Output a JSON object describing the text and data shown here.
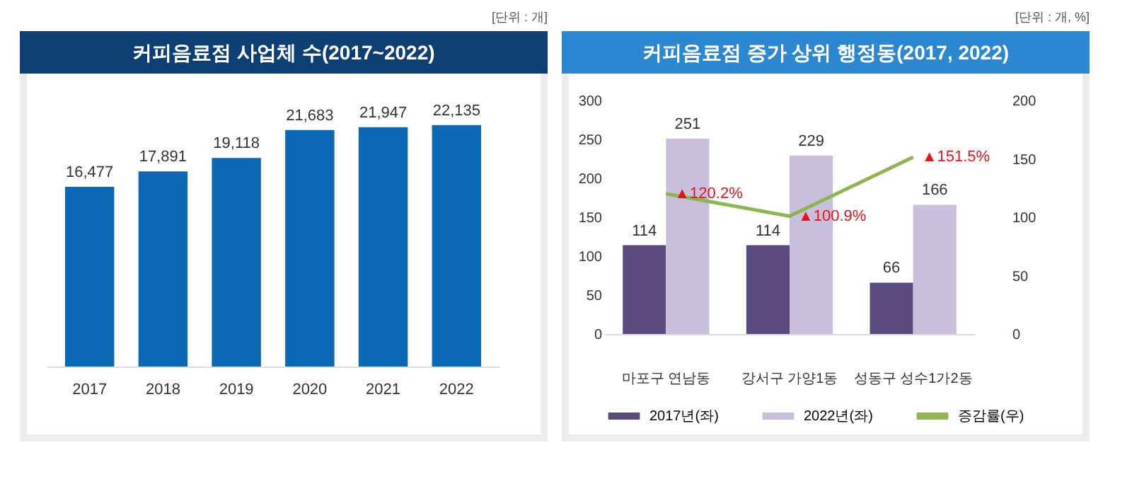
{
  "chart_data": [
    {
      "type": "bar",
      "title": "커피음료점 사업체 수(2017~2022)",
      "annotations": [
        "[단위 : 개]"
      ],
      "categories": [
        "2017",
        "2018",
        "2019",
        "2020",
        "2021",
        "2022"
      ],
      "values": [
        16477,
        17891,
        19118,
        21683,
        21947,
        22135
      ],
      "color": "#0a68b4",
      "value_labels": [
        "16,477",
        "17,891",
        "19,118",
        "21,683",
        "21,947",
        "22,135"
      ]
    },
    {
      "type": "bar",
      "title": "커피음료점 증가 상위 행정동(2017, 2022)",
      "annotations": [
        "[단위 : 개, %]"
      ],
      "categories": [
        "마포구 연남동",
        "강서구 가양1동",
        "성동구 성수1가2동"
      ],
      "series": [
        {
          "name": "2017년(좌)",
          "color": "#5b4a7e",
          "values": [
            114,
            114,
            66
          ]
        },
        {
          "name": "2022년(좌)",
          "color": "#c9bedc",
          "values": [
            251,
            229,
            166
          ]
        },
        {
          "name": "증감률(우)",
          "type": "line",
          "axis": "y2",
          "color": "#8db651",
          "values": [
            120.2,
            100.9,
            151.5
          ],
          "value_labels": [
            "▲120.2%",
            "▲100.9%",
            "▲151.5%"
          ]
        }
      ],
      "ylim": [
        0,
        300
      ],
      "yticks": [
        0,
        50,
        100,
        150,
        200,
        250,
        300
      ],
      "y2lim": [
        0,
        200
      ],
      "y2ticks": [
        0,
        50,
        100,
        150,
        200
      ],
      "data_labels": true,
      "legend": "bottom"
    }
  ]
}
